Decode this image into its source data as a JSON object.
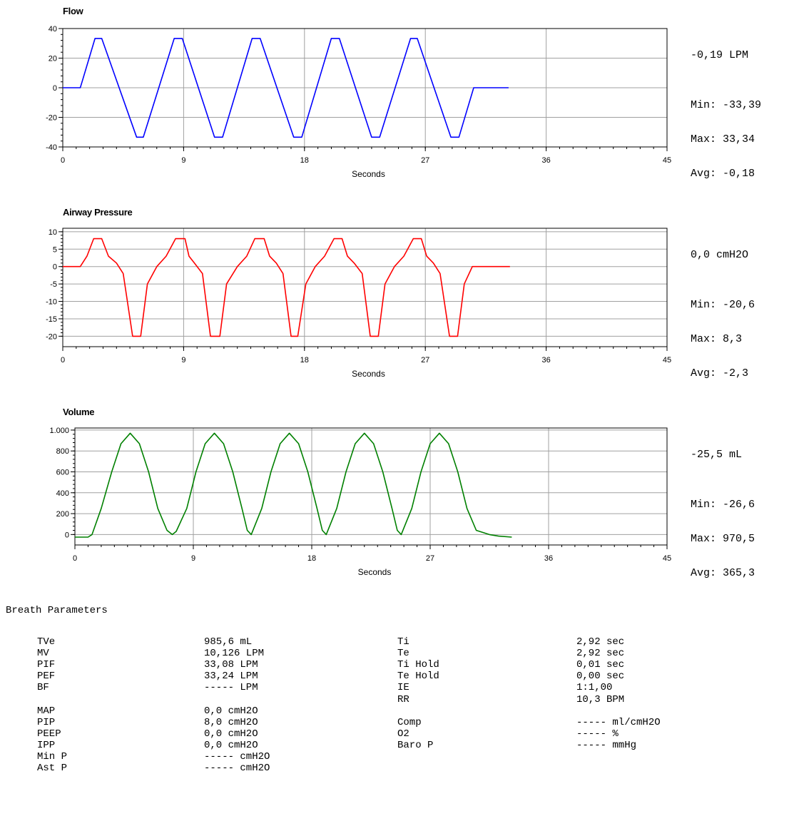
{
  "chart_data": [
    {
      "type": "line",
      "title": "Flow",
      "xlabel": "Seconds",
      "ylabel": "",
      "xlim": [
        0,
        45
      ],
      "ylim": [
        -40,
        40
      ],
      "xticks": [
        0,
        9,
        18,
        27,
        36,
        45
      ],
      "yticks": [
        -40,
        -20,
        0,
        20,
        40
      ],
      "ytick_labels": [
        "-40",
        "-20",
        "0",
        "20",
        "40"
      ],
      "grid": true,
      "color": "#0000ff",
      "series": [
        {
          "x": [
            0,
            1.3,
            1.4,
            2.4,
            2.9,
            5.5,
            6.0,
            8.3,
            8.9,
            11.3,
            11.9,
            14.1,
            14.7,
            17.2,
            17.8,
            20.0,
            20.6,
            23.0,
            23.6,
            25.9,
            26.4,
            28.9,
            29.5,
            30.6,
            33.2
          ],
          "y": [
            0,
            0,
            3,
            33.3,
            33.3,
            -33.4,
            -33.4,
            33.3,
            33.3,
            -33.4,
            -33.4,
            33.3,
            33.3,
            -33.4,
            -33.4,
            33.3,
            33.3,
            -33.4,
            -33.4,
            33.3,
            33.3,
            -33.4,
            -33.4,
            0,
            0
          ]
        }
      ],
      "current": "-0,19 LPM",
      "stats": [
        "Min: -33,39",
        "Max: 33,34",
        "Avg: -0,18"
      ]
    },
    {
      "type": "line",
      "title": "Airway Pressure",
      "xlabel": "Seconds",
      "ylabel": "",
      "xlim": [
        0,
        45
      ],
      "ylim": [
        -23,
        11
      ],
      "xticks": [
        0,
        9,
        18,
        27,
        36,
        45
      ],
      "yticks": [
        10,
        5,
        0,
        -5,
        -10,
        -15,
        -20
      ],
      "ytick_labels": [
        "10",
        "5",
        "0",
        "-5",
        "-10",
        "-15",
        "-20"
      ],
      "grid": true,
      "color": "#ff0000",
      "series": [
        {
          "x": [
            0,
            1.3,
            1.8,
            2.3,
            2.9,
            3.4,
            4.0,
            4.5,
            5.2,
            5.8,
            6.3,
            7.0,
            7.7,
            8.4,
            9.1,
            9.4,
            9.8,
            10.4,
            11.0,
            11.7,
            12.2,
            13.0,
            13.7,
            14.3,
            15.0,
            15.4,
            15.9,
            16.4,
            17.0,
            17.5,
            18.1,
            18.8,
            19.5,
            20.2,
            20.8,
            21.2,
            21.7,
            22.3,
            22.9,
            23.5,
            24.0,
            24.7,
            25.4,
            26.1,
            26.7,
            27.1,
            27.6,
            28.1,
            28.8,
            29.4,
            29.9,
            30.5,
            33.3
          ],
          "y": [
            0,
            0,
            3,
            8,
            8,
            3,
            1,
            -2,
            -20,
            -20,
            -5,
            0,
            3,
            8,
            8,
            3,
            1,
            -2,
            -20,
            -20,
            -5,
            0,
            3,
            8,
            8,
            3,
            1,
            -2,
            -20,
            -20,
            -5,
            0,
            3,
            8,
            8,
            3,
            1,
            -2,
            -20,
            -20,
            -5,
            0,
            3,
            8,
            8,
            3,
            1,
            -2,
            -20,
            -20,
            -5,
            0,
            0
          ]
        }
      ],
      "current": "0,0 cmH2O",
      "stats": [
        "Min: -20,6",
        "Max: 8,3",
        "Avg: -2,3"
      ]
    },
    {
      "type": "line",
      "title": "Volume",
      "xlabel": "Seconds",
      "ylabel": "",
      "xlim": [
        0,
        45
      ],
      "ylim": [
        -100,
        1020
      ],
      "xticks": [
        0,
        9,
        18,
        27,
        36,
        45
      ],
      "yticks": [
        1000,
        800,
        600,
        400,
        200,
        0
      ],
      "ytick_labels": [
        "1.000",
        "800",
        "600",
        "400",
        "200",
        "0"
      ],
      "grid": true,
      "color": "#008000",
      "series": [
        {
          "x": [
            0,
            1.0,
            1.3,
            2.0,
            2.8,
            3.5,
            4.2,
            4.9,
            5.6,
            6.3,
            7.0,
            7.4,
            7.7,
            8.5,
            9.2,
            9.9,
            10.6,
            11.3,
            12.0,
            12.7,
            13.1,
            13.4,
            14.2,
            14.9,
            15.6,
            16.3,
            17.0,
            17.7,
            18.4,
            18.8,
            19.1,
            19.9,
            20.6,
            21.3,
            22.0,
            22.7,
            23.4,
            24.1,
            24.5,
            24.8,
            25.6,
            26.3,
            27.0,
            27.7,
            28.4,
            29.1,
            29.8,
            30.5,
            31.5,
            32.2,
            33.2
          ],
          "y": [
            -25,
            -25,
            0,
            250,
            600,
            870,
            970,
            870,
            600,
            250,
            40,
            0,
            30,
            250,
            600,
            870,
            970,
            870,
            600,
            250,
            40,
            0,
            250,
            600,
            870,
            970,
            870,
            600,
            250,
            40,
            0,
            250,
            600,
            870,
            970,
            870,
            600,
            250,
            40,
            0,
            250,
            600,
            870,
            970,
            870,
            600,
            250,
            40,
            0,
            -15,
            -25
          ]
        }
      ],
      "current": "-25,5 mL",
      "stats": [
        "Min: -26,6",
        "Max: 970,5",
        "Avg: 365,3"
      ]
    }
  ],
  "breath_parameters": {
    "title": "Breath Parameters",
    "left_labels": [
      "TVe",
      "MV",
      "PIF",
      "PEF",
      "BF",
      "",
      "MAP",
      "PIP",
      "PEEP",
      "IPP",
      "Min P",
      "Ast P"
    ],
    "left_values": [
      "985,6 mL",
      "10,126 LPM",
      "33,08 LPM",
      "33,24 LPM",
      "----- LPM",
      "",
      "0,0 cmH2O",
      "8,0 cmH2O",
      "0,0 cmH2O",
      "0,0 cmH2O",
      "----- cmH2O",
      "----- cmH2O"
    ],
    "right_labels": [
      "Ti",
      "Te",
      "Ti Hold",
      "Te Hold",
      "IE",
      "RR",
      "",
      "Comp",
      "O2",
      "Baro P"
    ],
    "right_values": [
      "2,92 sec",
      "2,92 sec",
      "0,01 sec",
      "0,00 sec",
      "1:1,00",
      "10,3 BPM",
      "",
      "----- ml/cmH2O",
      "----- %",
      "----- mmHg"
    ]
  }
}
